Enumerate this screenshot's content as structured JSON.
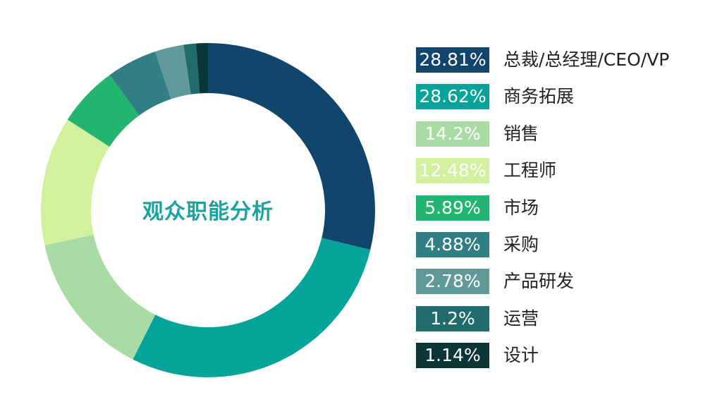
{
  "chart_data": {
    "type": "pie",
    "title": "观众职能分析",
    "categories": [
      "总裁/总经理/CEO/VP",
      "商务拓展",
      "销售",
      "工程师",
      "市场",
      "采购",
      "产品研发",
      "运营",
      "设计"
    ],
    "values": [
      28.81,
      28.62,
      14.2,
      12.48,
      5.89,
      4.88,
      2.78,
      1.2,
      1.14
    ],
    "value_labels": [
      "28.81%",
      "28.62%",
      "14.2%",
      "12.48%",
      "5.89%",
      "4.88%",
      "2.78%",
      "1.2%",
      "1.14%"
    ],
    "colors": [
      "#11456b",
      "#05a49b",
      "#a9dba5",
      "#d2f19e",
      "#23b56f",
      "#2f7f84",
      "#61999b",
      "#206b6c",
      "#0b3638"
    ],
    "donut": true,
    "legend_position": "right"
  }
}
